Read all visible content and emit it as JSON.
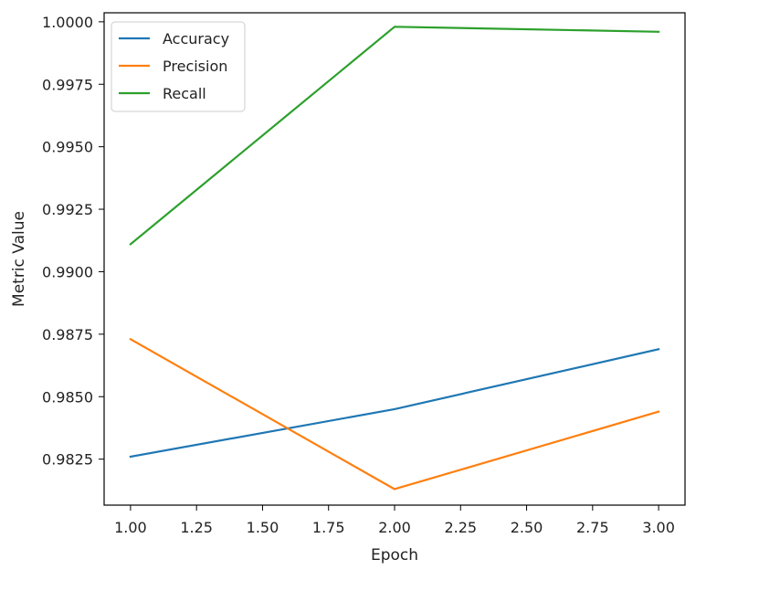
{
  "chart_data": {
    "type": "line",
    "title": "",
    "xlabel": "Epoch",
    "ylabel": "Metric Value",
    "x": [
      1,
      2,
      3
    ],
    "xlim": [
      0.9,
      3.1
    ],
    "ylim": [
      0.98066,
      1.00036
    ],
    "xticks": [
      1.0,
      1.25,
      1.5,
      1.75,
      2.0,
      2.25,
      2.5,
      2.75,
      3.0
    ],
    "xtick_labels": [
      "1.00",
      "1.25",
      "1.50",
      "1.75",
      "2.00",
      "2.25",
      "2.50",
      "2.75",
      "3.00"
    ],
    "yticks": [
      0.9825,
      0.985,
      0.9875,
      0.99,
      0.9925,
      0.995,
      0.9975,
      1.0
    ],
    "ytick_labels": [
      "0.9825",
      "0.9850",
      "0.9875",
      "0.9900",
      "0.9925",
      "0.9950",
      "0.9975",
      "1.0000"
    ],
    "grid": false,
    "legend_position": "top-left",
    "series": [
      {
        "name": "Accuracy",
        "color": "#1f77b4",
        "values": [
          0.9826,
          0.9845,
          0.9869
        ]
      },
      {
        "name": "Precision",
        "color": "#ff7f0e",
        "values": [
          0.9873,
          0.9813,
          0.9844
        ]
      },
      {
        "name": "Recall",
        "color": "#2ca02c",
        "values": [
          0.9911,
          0.9998,
          0.9996
        ]
      }
    ]
  }
}
